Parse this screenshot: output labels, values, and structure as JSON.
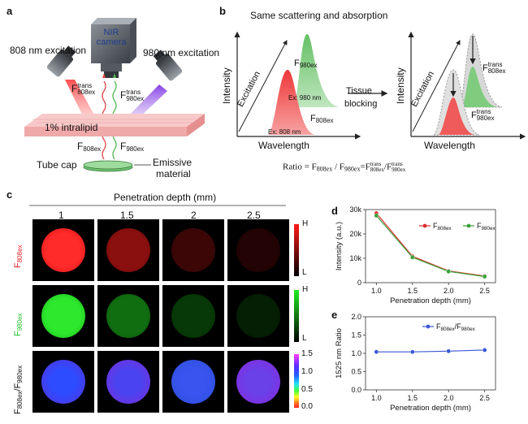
{
  "panel_a": {
    "letter": "a",
    "nir_camera": "NIR camera",
    "excitation_808": "808 nm excitation",
    "excitation_980": "980 nm excitation",
    "f_trans_808": "F",
    "f_trans_808_sup": "trans",
    "f_trans_808_sub": "808ex",
    "f_trans_980": "F",
    "f_trans_980_sup": "trans",
    "f_trans_980_sub": "980ex",
    "intralipid": "1% intralipid",
    "f808": "F",
    "f808_sub": "808ex",
    "f980": "F",
    "f980_sub": "980ex",
    "tube_cap": "Tube cap",
    "emissive": "Emissive",
    "material": "material"
  },
  "panel_b": {
    "letter": "b",
    "title": "Same scattering and absorption",
    "y_axis": "Intensity",
    "x_axis": "Wavelength",
    "excitation": "Excitation",
    "ex_980": "Ex: 980 nm",
    "ex_808": "Ex: 808 nm",
    "f980_main": "F",
    "f980_main_sub": "980ex",
    "f808_main": "F",
    "f808_main_sub": "808ex",
    "tissue_1": "Tissue",
    "tissue_2": "blocking",
    "right_y_axis": "Intensity",
    "right_x_axis": "Wavelength",
    "right_excitation": "Excitation",
    "right_f808": "F",
    "right_f808_sup": "trans",
    "right_f808_sub": "808ex",
    "right_f980": "F",
    "right_f980_sup": "trans",
    "right_f980_sub": "980ex",
    "ratio_equation": "Ratio = F808ex / F980ex=F",
    "ratio_part1": "Ratio = F",
    "ratio_sub1": "808ex",
    "ratio_part2": " / F",
    "ratio_sub2": "980ex",
    "ratio_part3": "=F",
    "ratio_sup3": "trans",
    "ratio_sub3": "808ex",
    "ratio_part4": "/F",
    "ratio_sup4": "trans",
    "ratio_sub4": "980ex"
  },
  "panel_c": {
    "letter": "c",
    "title": "Penetration depth (mm)",
    "depths": [
      "1",
      "1.5",
      "2",
      "2.5"
    ],
    "row_labels": [
      {
        "main": "F",
        "sub": "808ex",
        "color": "#e8202a"
      },
      {
        "main": "F",
        "sub": "980ex",
        "color": "#22c02a"
      },
      {
        "main": "F",
        "sub": "808ex",
        "main2": "/F",
        "sub2": "980ex",
        "color": "#111111"
      }
    ],
    "colorbar_hl": {
      "high": "H",
      "low": "L"
    },
    "ratio_colorbar_ticks": [
      "1.5",
      "1.0",
      "0.5",
      "0.0"
    ]
  },
  "panel_d": {
    "letter": "d"
  },
  "panel_e": {
    "letter": "e"
  },
  "chart_data": [
    {
      "type": "line",
      "panel": "d",
      "x": [
        1.0,
        1.5,
        2.0,
        2.5
      ],
      "x_tick_labels": [
        "1.0",
        "1.5",
        "2.0",
        "2.5"
      ],
      "xlabel": "Penetration depth (mm)",
      "ylabel": "Intensity (a.u.)",
      "ylim": [
        0,
        30000
      ],
      "y_tick_labels": [
        "0",
        "10k",
        "20k",
        "30k"
      ],
      "y_ticks": [
        0,
        10000,
        20000,
        30000
      ],
      "xlim": [
        0.85,
        2.65
      ],
      "legend_position": "top-right",
      "series": [
        {
          "name": "F808ex",
          "name_main": "F",
          "name_sub": "808ex",
          "color": "#d9302c",
          "values": [
            28500,
            10800,
            4800,
            2700
          ]
        },
        {
          "name": "F980ex",
          "name_main": "F",
          "name_sub": "980ex",
          "color": "#3aa23a",
          "values": [
            27500,
            10400,
            4600,
            2500
          ]
        }
      ]
    },
    {
      "type": "line",
      "panel": "e",
      "x": [
        1.0,
        1.5,
        2.0,
        2.5
      ],
      "x_tick_labels": [
        "1.0",
        "1.5",
        "2.0",
        "2.5"
      ],
      "xlabel": "Penetration depth (mm)",
      "ylabel": "1525 nm Ratio",
      "ylim": [
        0,
        2
      ],
      "y_tick_labels": [
        "0.0",
        "0.5",
        "1.0",
        "1.5",
        "2.0"
      ],
      "y_ticks": [
        0,
        0.5,
        1.0,
        1.5,
        2.0
      ],
      "xlim": [
        0.85,
        2.65
      ],
      "legend_position": "top-right",
      "series": [
        {
          "name": "F808ex/F980ex",
          "name_main": "F",
          "name_sub": "808ex",
          "name_main2": "/F",
          "name_sub2": "980ex",
          "color": "#3b58d8",
          "values": [
            1.04,
            1.04,
            1.06,
            1.09
          ]
        }
      ]
    }
  ]
}
